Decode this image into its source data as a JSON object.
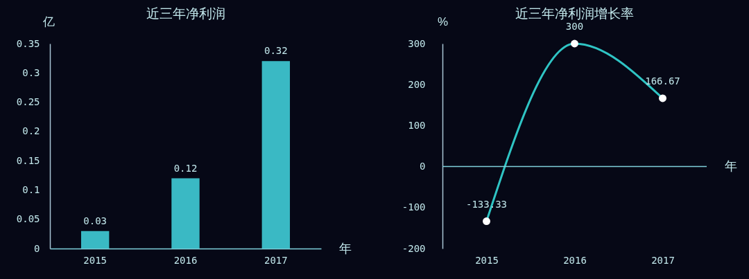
{
  "chart_data": [
    {
      "type": "bar",
      "title": "近三年净利润",
      "xlabel": "年",
      "ylabel": "亿",
      "categories": [
        "2015",
        "2016",
        "2017"
      ],
      "values": [
        0.03,
        0.12,
        0.32
      ],
      "color": "#3ab9c4",
      "ylim": [
        0,
        0.35
      ],
      "yticks": [
        0,
        0.05,
        0.1,
        0.15,
        0.2,
        0.25,
        0.3,
        0.35
      ],
      "data_labels": true
    },
    {
      "type": "line",
      "title": "近三年净利润增长率",
      "xlabel": "年",
      "ylabel": "%",
      "categories": [
        "2015",
        "2016",
        "2017"
      ],
      "values": [
        -133.33,
        300,
        166.67
      ],
      "color": "#2fc4c4",
      "ylim": [
        -200,
        300
      ],
      "yticks": [
        -200,
        -100,
        0,
        100,
        200,
        300
      ],
      "data_labels": true,
      "marker": "circle",
      "ref_lines": [
        {
          "axis": "y",
          "value": 0,
          "color": "#7fd0dc"
        }
      ]
    }
  ]
}
